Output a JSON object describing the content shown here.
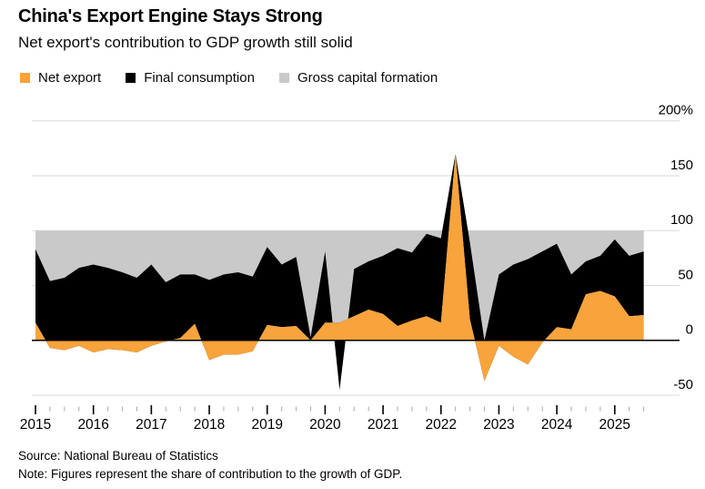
{
  "header": {
    "title": "China's Export Engine Stays Strong",
    "subtitle": "Net export's contribution to GDP growth still solid"
  },
  "legend": {
    "items": [
      {
        "label": "Net export",
        "color": "#F8A33B"
      },
      {
        "label": "Final consumption",
        "color": "#000000"
      },
      {
        "label": "Gross capital formation",
        "color": "#C9C9C9"
      }
    ]
  },
  "chart_data": {
    "type": "area",
    "stacked": true,
    "title": "China's Export Engine Stays Strong",
    "subtitle": "Net export's contribution to GDP growth still solid",
    "unit_suffix": "%",
    "x": [
      "2015 Q1",
      "2015 Q2",
      "2015 Q3",
      "2015 Q4",
      "2016 Q1",
      "2016 Q2",
      "2016 Q3",
      "2016 Q4",
      "2017 Q1",
      "2017 Q2",
      "2017 Q3",
      "2017 Q4",
      "2018 Q1",
      "2018 Q2",
      "2018 Q3",
      "2018 Q4",
      "2019 Q1",
      "2019 Q2",
      "2019 Q3",
      "2019 Q4",
      "2020 Q1",
      "2020 Q2",
      "2020 Q3",
      "2020 Q4",
      "2021 Q1",
      "2021 Q2",
      "2021 Q3",
      "2021 Q4",
      "2022 Q1",
      "2022 Q2",
      "2022 Q3",
      "2022 Q4",
      "2023 Q1",
      "2023 Q2",
      "2023 Q3",
      "2023 Q4",
      "2024 Q1",
      "2024 Q2",
      "2024 Q3",
      "2024 Q4",
      "2025 Q1",
      "2025 Q2",
      "2025 Q3"
    ],
    "series": [
      {
        "name": "Net export",
        "color": "#F8A33B",
        "values": [
          16,
          -7,
          -9,
          -5,
          -11,
          -8,
          -9,
          -11,
          -5,
          -1,
          2,
          15,
          -18,
          -13,
          -13,
          -10,
          14,
          12,
          13,
          0,
          16,
          16,
          22,
          28,
          24,
          13,
          18,
          22,
          16,
          170,
          19,
          -37,
          -5,
          -15,
          -22,
          -2,
          12,
          10,
          42,
          45,
          40,
          22,
          23
        ]
      },
      {
        "name": "Final consumption",
        "color": "#000000",
        "values": [
          67,
          61,
          66,
          71,
          80,
          74,
          71,
          68,
          74,
          54,
          58,
          45,
          73,
          73,
          75,
          68,
          71,
          57,
          63,
          3,
          65,
          -61,
          43,
          44,
          53,
          71,
          62,
          75,
          77,
          0,
          70,
          37,
          65,
          84,
          96,
          83,
          76,
          50,
          30,
          32,
          52,
          55,
          58
        ]
      },
      {
        "name": "Gross capital formation",
        "color": "#C9C9C9",
        "values": [
          17,
          46,
          43,
          34,
          31,
          34,
          38,
          43,
          31,
          47,
          40,
          40,
          45,
          40,
          38,
          42,
          15,
          31,
          24,
          97,
          19,
          145,
          35,
          28,
          23,
          16,
          20,
          3,
          7,
          -70,
          11,
          100,
          40,
          31,
          26,
          19,
          12,
          40,
          28,
          23,
          8,
          23,
          19
        ]
      }
    ],
    "y_ticks": [
      {
        "value": 200,
        "label": "200%"
      },
      {
        "value": 150,
        "label": "150"
      },
      {
        "value": 100,
        "label": "100"
      },
      {
        "value": 50,
        "label": "50"
      },
      {
        "value": 0,
        "label": "0"
      },
      {
        "value": -50,
        "label": "-50"
      }
    ],
    "x_tick_years": [
      "2015",
      "2016",
      "2017",
      "2018",
      "2019",
      "2020",
      "2021",
      "2022",
      "2023",
      "2024",
      "2025"
    ],
    "ylim": [
      -60,
      210
    ],
    "legend_position": "top",
    "grid": "horizontal"
  },
  "footer": {
    "source": "Source: National Bureau of Statistics",
    "note": "Note: Figures represent the share of contribution to the growth of GDP."
  },
  "colors": {
    "gridline": "#D9D9D9",
    "zero_line": "#000000",
    "minor_tick": "#A8A8A8",
    "major_tick": "#000000",
    "text": "#000000"
  }
}
